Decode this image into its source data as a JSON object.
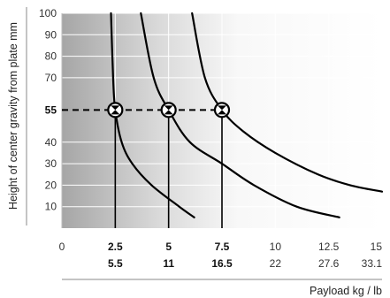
{
  "chart_data": {
    "type": "line",
    "xlabel": "Payload kg / lb",
    "ylabel": "Height of center gravity from plate mm",
    "xlim": [
      0,
      15
    ],
    "ylim": [
      0,
      100
    ],
    "x_ticks": [
      {
        "kg": "0",
        "lb": "",
        "bold": false
      },
      {
        "kg": "2.5",
        "lb": "5.5",
        "bold": true
      },
      {
        "kg": "5",
        "lb": "11",
        "bold": true
      },
      {
        "kg": "7.5",
        "lb": "16.5",
        "bold": true
      },
      {
        "kg": "10",
        "lb": "22",
        "bold": false
      },
      {
        "kg": "12.5",
        "lb": "27.6",
        "bold": false
      },
      {
        "kg": "15",
        "lb": "33.1",
        "bold": false
      }
    ],
    "y_ticks": [
      {
        "label": "10",
        "value": 10,
        "bold": false
      },
      {
        "label": "20",
        "value": 20,
        "bold": false
      },
      {
        "label": "30",
        "value": 30,
        "bold": false
      },
      {
        "label": "40",
        "value": 40,
        "bold": false
      },
      {
        "label": "55",
        "value": 55,
        "bold": true
      },
      {
        "label": "70",
        "value": 70,
        "bold": false
      },
      {
        "label": "80",
        "value": 80,
        "bold": false
      },
      {
        "label": "90",
        "value": 90,
        "bold": false
      },
      {
        "label": "100",
        "value": 100,
        "bold": false
      }
    ],
    "series": [
      {
        "points": [
          [
            2.3,
            100
          ],
          [
            2.4,
            70
          ],
          [
            2.5,
            55
          ],
          [
            2.8,
            40
          ],
          [
            3.3,
            30
          ],
          [
            4.2,
            20
          ],
          [
            5.5,
            10
          ],
          [
            6.2,
            5
          ]
        ]
      },
      {
        "points": [
          [
            3.7,
            100
          ],
          [
            4.3,
            70
          ],
          [
            5,
            55
          ],
          [
            6,
            40
          ],
          [
            7.5,
            30
          ],
          [
            9,
            20
          ],
          [
            11,
            10
          ],
          [
            13,
            5
          ]
        ]
      },
      {
        "points": [
          [
            6.1,
            100
          ],
          [
            6.7,
            70
          ],
          [
            7.5,
            55
          ],
          [
            8.5,
            45
          ],
          [
            10,
            35
          ],
          [
            12,
            25
          ],
          [
            13.5,
            20
          ],
          [
            15,
            17
          ]
        ]
      }
    ],
    "reference_line": {
      "y": 55
    },
    "markers": [
      {
        "x": 2.5,
        "y": 55
      },
      {
        "x": 5,
        "y": 55
      },
      {
        "x": 7.5,
        "y": 55
      }
    ],
    "grid": true
  }
}
